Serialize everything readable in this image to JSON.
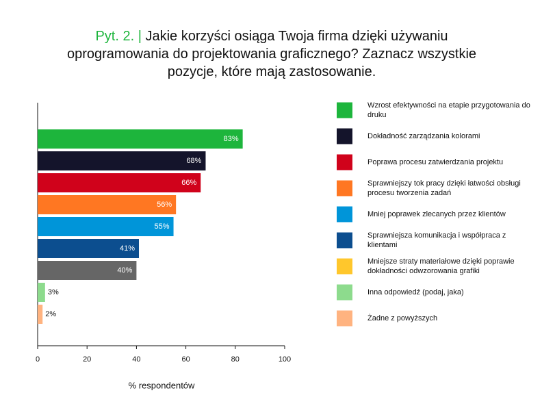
{
  "chart_data": {
    "type": "bar",
    "orientation": "horizontal",
    "title_prefix": "Pyt. 2. |",
    "title": "Jakie korzyści osiąga Twoja firma dzięki używaniu oprogramowania do projektowania graficznego? Zaznacz wszystkie pozycje, które mają zastosowanie.",
    "title_prefix_color": "#1db53c",
    "categories": [
      "Wzrost efektywności na etapie przygotowania do druku",
      "Dokładność zarządzania kolorami",
      "Poprawa procesu zatwierdzania projektu",
      "Sprawniejszy tok pracy dzięki łatwości obsługi procesu tworzenia zadań",
      "Mniej poprawek zlecanych przez klientów",
      "Sprawniejsza komunikacja i współpraca z klientami",
      "Mniejsze straty materiałowe dzięki poprawie dokładności odwzorowania grafiki",
      "Inna odpowiedź (podaj, jaka)",
      "Żadne z powyższych"
    ],
    "values": [
      83,
      68,
      66,
      56,
      55,
      41,
      40,
      3,
      2
    ],
    "value_labels": [
      "83%",
      "68%",
      "66%",
      "56%",
      "55%",
      "41%",
      "40%",
      "3%",
      "2%"
    ],
    "colors": [
      "#1db53c",
      "#14142b",
      "#d0021b",
      "#ff7722",
      "#0095d9",
      "#0c4e8f",
      "#666666",
      "#8ddb8d",
      "#ffb380"
    ],
    "legend_colors": [
      "#1db53c",
      "#14142b",
      "#d0021b",
      "#ff7722",
      "#0095d9",
      "#0c4e8f",
      "#ffc72c",
      "#8ddb8d",
      "#ffb380"
    ],
    "xlabel": "% respondentów",
    "xlim": [
      0,
      100
    ],
    "xticks": [
      0,
      20,
      40,
      60,
      80,
      100
    ]
  }
}
